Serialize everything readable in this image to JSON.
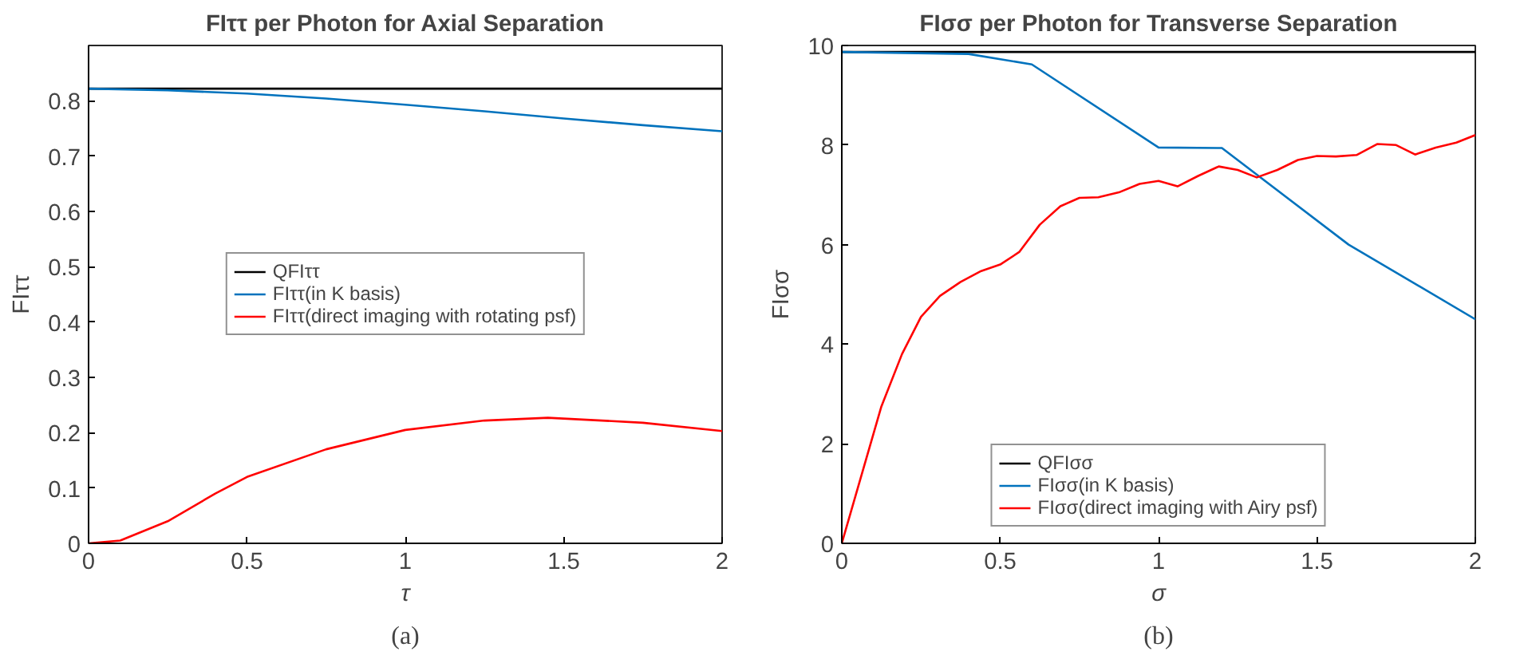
{
  "chart_data": [
    {
      "type": "line",
      "title": "FIττ per Photon for Axial Separation",
      "xlabel": "τ",
      "ylabel": "FIττ",
      "annotations": [
        "(a)"
      ],
      "xlim": [
        0,
        2
      ],
      "ylim": [
        0,
        0.9
      ],
      "xticks": [
        0,
        0.5,
        1,
        1.5,
        2
      ],
      "yticks": [
        0,
        0.1,
        0.2,
        0.3,
        0.4,
        0.5,
        0.6,
        0.7,
        0.8
      ],
      "grid": false,
      "legend": "center",
      "series": [
        {
          "name": "QFIττ",
          "color": "#000000",
          "x": [
            0,
            2
          ],
          "values": [
            0.822,
            0.822
          ]
        },
        {
          "name": "FIττ(in K basis)",
          "color": "#0072bd",
          "x": [
            0,
            0.25,
            0.5,
            0.75,
            1,
            1.25,
            1.5,
            1.75,
            2
          ],
          "values": [
            0.822,
            0.819,
            0.813,
            0.804,
            0.793,
            0.781,
            0.768,
            0.756,
            0.745
          ]
        },
        {
          "name": "FIττ(direct imaging with rotating psf)",
          "color": "#ff0000",
          "x": [
            0,
            0.1,
            0.25,
            0.4,
            0.5,
            0.75,
            1,
            1.25,
            1.45,
            1.75,
            2
          ],
          "values": [
            0,
            0.005,
            0.04,
            0.09,
            0.12,
            0.17,
            0.205,
            0.222,
            0.227,
            0.218,
            0.203
          ]
        }
      ]
    },
    {
      "type": "line",
      "title": "FIσσ per Photon for Transverse Separation",
      "xlabel": "σ",
      "ylabel": "FIσσ",
      "annotations": [
        "(b)"
      ],
      "xlim": [
        0,
        2
      ],
      "ylim": [
        0,
        10
      ],
      "xticks": [
        0,
        0.5,
        1,
        1.5,
        2
      ],
      "yticks": [
        0,
        2,
        4,
        6,
        8,
        10
      ],
      "grid": false,
      "legend": "bottom",
      "series": [
        {
          "name": "QFIσσ",
          "color": "#000000",
          "x": [
            0,
            2
          ],
          "values": [
            9.87,
            9.87
          ]
        },
        {
          "name": "FIσσ(in K basis)",
          "color": "#0072bd",
          "x": [
            0,
            0.4,
            0.6,
            1.0,
            1.2,
            1.6,
            2.0
          ],
          "values": [
            9.87,
            9.83,
            9.62,
            7.95,
            7.94,
            6.0,
            4.5
          ]
        },
        {
          "name": "FIσσ(direct imaging with Airy psf)",
          "color": "#ff0000",
          "x": [
            0,
            0.125,
            0.19,
            0.25,
            0.31,
            0.375,
            0.44,
            0.5,
            0.56,
            0.625,
            0.69,
            0.75,
            0.81,
            0.875,
            0.94,
            1.0,
            1.06,
            1.125,
            1.19,
            1.25,
            1.31,
            1.375,
            1.44,
            1.5,
            1.56,
            1.625,
            1.69,
            1.75,
            1.81,
            1.875,
            1.94,
            2.0
          ],
          "values": [
            0,
            2.75,
            3.8,
            4.55,
            4.97,
            5.25,
            5.47,
            5.6,
            5.85,
            6.4,
            6.77,
            6.94,
            6.95,
            7.05,
            7.22,
            7.28,
            7.17,
            7.38,
            7.57,
            7.5,
            7.35,
            7.5,
            7.7,
            7.78,
            7.77,
            7.8,
            8.02,
            8.0,
            7.81,
            7.95,
            8.05,
            8.2
          ]
        }
      ]
    }
  ]
}
